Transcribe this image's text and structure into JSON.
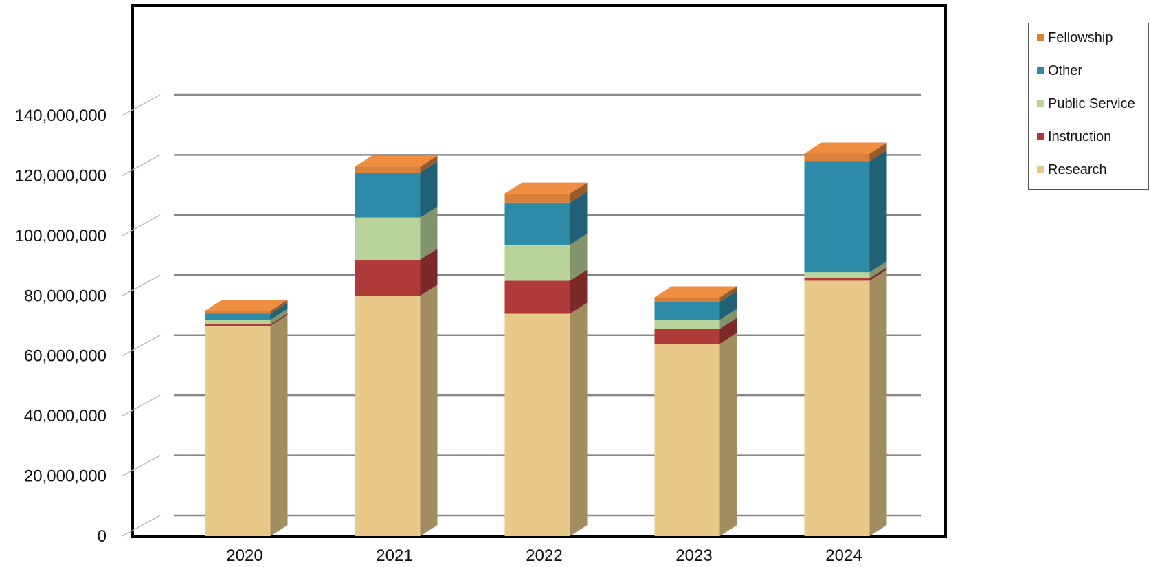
{
  "chart_data": {
    "type": "bar",
    "stacked": true,
    "three_d": true,
    "categories": [
      "2020",
      "2021",
      "2022",
      "2023",
      "2024"
    ],
    "y_ticks": [
      "0",
      "20,000,000",
      "40,000,000",
      "60,000,000",
      "80,000,000",
      "100,000,000",
      "120,000,000",
      "140,000,000"
    ],
    "ylim": [
      0,
      140000000
    ],
    "grid": true,
    "legend_position": "right",
    "series": [
      {
        "name": "Research",
        "color": "#e8c98a",
        "values": [
          70000000,
          80000000,
          74000000,
          64000000,
          85000000
        ]
      },
      {
        "name": "Instruction",
        "color": "#b03a3a",
        "values": [
          500000,
          12000000,
          11000000,
          5000000,
          800000
        ]
      },
      {
        "name": "Public Service",
        "color": "#b8d49a",
        "values": [
          1500000,
          14000000,
          12000000,
          3000000,
          2000000
        ]
      },
      {
        "name": "Other",
        "color": "#2e8ba8",
        "values": [
          2000000,
          15000000,
          14000000,
          6000000,
          37000000
        ]
      },
      {
        "name": "Fellowship",
        "color": "#d9803a",
        "values": [
          1000000,
          2000000,
          3000000,
          1500000,
          2500000
        ]
      }
    ]
  },
  "legend": {
    "items": [
      {
        "label": "Fellowship",
        "color": "#d9803a"
      },
      {
        "label": "Other",
        "color": "#2e8ba8"
      },
      {
        "label": "Public Service",
        "color": "#b8d49a"
      },
      {
        "label": "Instruction",
        "color": "#b03a3a"
      },
      {
        "label": "Research",
        "color": "#e8c98a"
      }
    ]
  }
}
